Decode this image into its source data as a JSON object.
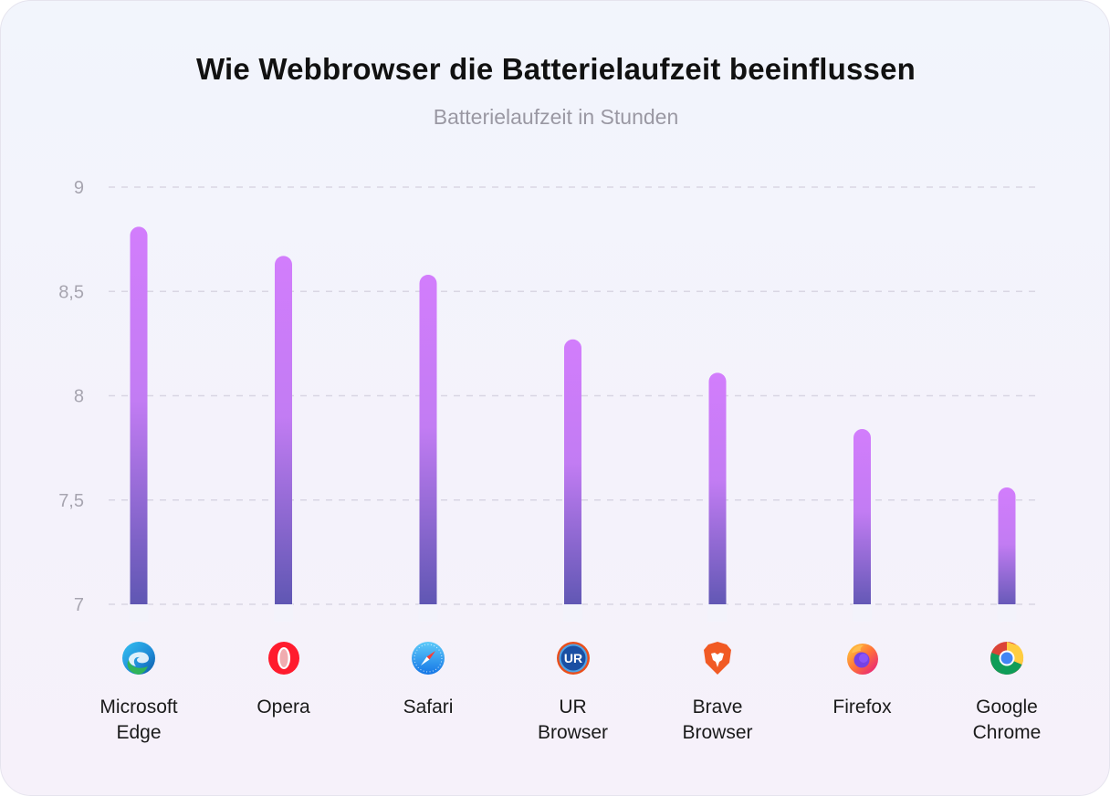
{
  "chart_data": {
    "type": "bar",
    "title": "Wie Webbrowser die Batterielaufzeit beeinflussen",
    "subtitle": "Batterielaufzeit in Stunden",
    "ylim": [
      7,
      9
    ],
    "yticks": [
      "9",
      "8,5",
      "8",
      "7,5",
      "7"
    ],
    "ytick_values": [
      9,
      8.5,
      8,
      7.5,
      7
    ],
    "grid": true,
    "categories": [
      "Microsoft\nEdge",
      "Opera",
      "Safari",
      "UR\nBrowser",
      "Brave\nBrowser",
      "Firefox",
      "Google\nChrome"
    ],
    "icons": [
      "edge-icon",
      "opera-icon",
      "safari-icon",
      "ur-browser-icon",
      "brave-icon",
      "firefox-icon",
      "chrome-icon"
    ],
    "values": [
      8.81,
      8.67,
      8.58,
      8.27,
      8.11,
      7.84,
      7.56
    ],
    "colors": {
      "bar_top": "#d27dfc",
      "bar_bottom": "#5b55b0",
      "grid": "#d9d6e3",
      "tick": "#a7a5b0"
    }
  }
}
